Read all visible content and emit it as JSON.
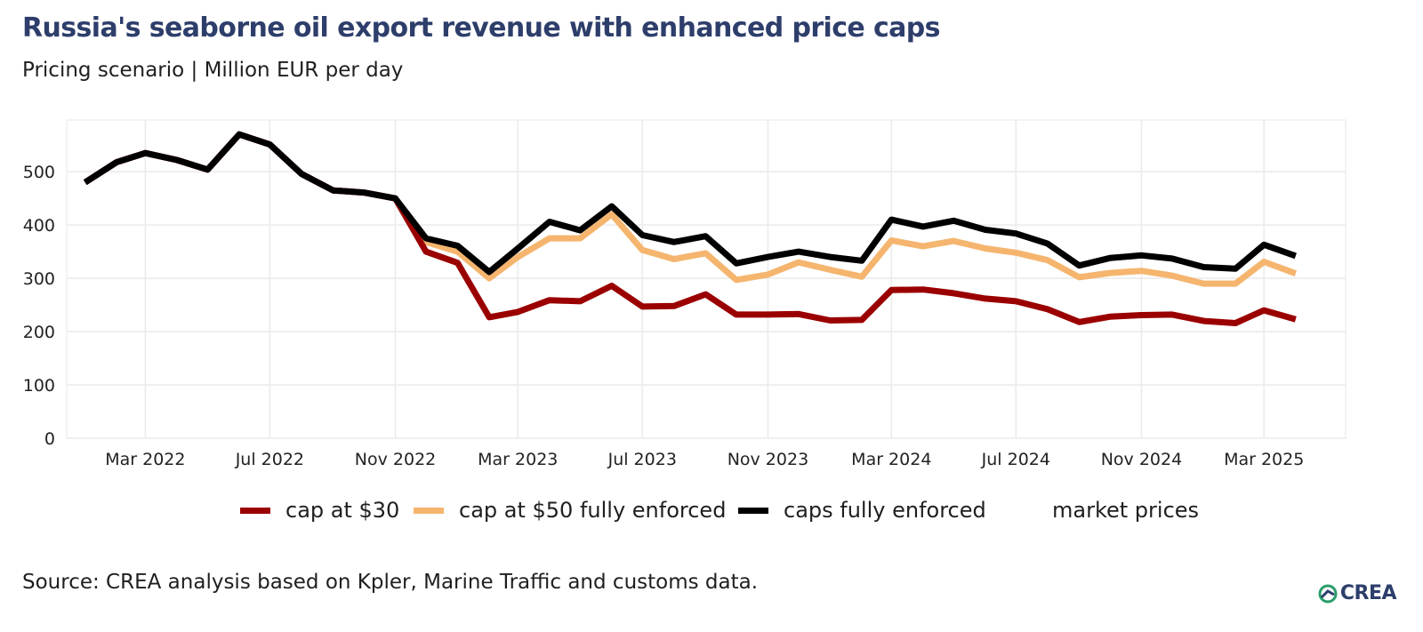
{
  "title": "Russia's seaborne oil export revenue with enhanced price caps",
  "subtitle": "Pricing scenario | Million EUR per day",
  "source": "Source: CREA analysis based on Kpler, Marine Traffic and customs data.",
  "logo_text": "CREA",
  "chart_data": {
    "type": "line",
    "title": "Russia's seaborne oil export revenue with enhanced price caps",
    "subtitle": "Pricing scenario | Million EUR per day",
    "x": [
      "2022-01",
      "2022-02",
      "2022-03",
      "2022-04",
      "2022-05",
      "2022-06",
      "2022-07",
      "2022-08",
      "2022-09",
      "2022-10",
      "2022-11",
      "2022-12",
      "2023-01",
      "2023-02",
      "2023-03",
      "2023-04",
      "2023-05",
      "2023-06",
      "2023-07",
      "2023-08",
      "2023-09",
      "2023-10",
      "2023-11",
      "2023-12",
      "2024-01",
      "2024-02",
      "2024-03",
      "2024-04",
      "2024-05",
      "2024-06",
      "2024-07",
      "2024-08",
      "2024-09",
      "2024-10",
      "2024-11",
      "2024-12",
      "2025-01",
      "2025-02",
      "2025-03",
      "2025-04"
    ],
    "x_ticks": [
      {
        "label": "Mar 2022",
        "x": "2022-03"
      },
      {
        "label": "Jul 2022",
        "x": "2022-07"
      },
      {
        "label": "Nov 2022",
        "x": "2022-11"
      },
      {
        "label": "Mar 2023",
        "x": "2023-03"
      },
      {
        "label": "Jul 2023",
        "x": "2023-07"
      },
      {
        "label": "Nov 2023",
        "x": "2023-11"
      },
      {
        "label": "Mar 2024",
        "x": "2024-03"
      },
      {
        "label": "Jul 2024",
        "x": "2024-07"
      },
      {
        "label": "Nov 2024",
        "x": "2024-11"
      },
      {
        "label": "Mar 2025",
        "x": "2025-03"
      }
    ],
    "y_ticks": [
      0,
      100,
      200,
      300,
      400,
      500
    ],
    "ylim": [
      0,
      597
    ],
    "xlim": [
      "2021-12-14",
      "2025-05-20"
    ],
    "grid": true,
    "legend_position": "bottom",
    "series": [
      {
        "name": "market prices",
        "color": "#000000",
        "show_swatch": false,
        "values": [
          480,
          518,
          535,
          522,
          504,
          570,
          551,
          496,
          465,
          461,
          450,
          375,
          361,
          312,
          356,
          406,
          390,
          435,
          381,
          368,
          379,
          328,
          340,
          350,
          340,
          333,
          410,
          397,
          408,
          391,
          384,
          365,
          324,
          338,
          343,
          337,
          321,
          318,
          363,
          342
        ]
      },
      {
        "name": "cap at $50 fully enforced",
        "color": "#f5b56e",
        "show_swatch": true,
        "values": [
          480,
          518,
          535,
          522,
          504,
          570,
          551,
          496,
          465,
          461,
          450,
          368,
          350,
          300,
          340,
          375,
          375,
          420,
          353,
          336,
          347,
          297,
          307,
          330,
          316,
          303,
          371,
          360,
          370,
          356,
          348,
          334,
          302,
          310,
          314,
          305,
          290,
          290,
          331,
          309
        ]
      },
      {
        "name": "cap at $30",
        "color": "#9b0000",
        "show_swatch": true,
        "values": [
          480,
          518,
          535,
          522,
          504,
          570,
          551,
          496,
          465,
          461,
          450,
          350,
          329,
          227,
          237,
          259,
          257,
          286,
          247,
          248,
          270,
          232,
          232,
          233,
          221,
          222,
          278,
          279,
          272,
          262,
          257,
          242,
          218,
          228,
          231,
          232,
          220,
          216,
          240,
          223
        ]
      },
      {
        "name": "caps fully enforced",
        "color": "#000000",
        "show_swatch": true,
        "values": [
          480,
          518,
          535,
          522,
          504,
          570,
          551,
          496,
          465,
          461,
          450,
          375,
          361,
          312,
          356,
          406,
          390,
          435,
          381,
          368,
          379,
          328,
          340,
          350,
          340,
          333,
          410,
          397,
          408,
          391,
          384,
          365,
          324,
          338,
          343,
          337,
          321,
          318,
          363,
          342
        ]
      }
    ],
    "legend_order": [
      "cap at $30",
      "cap at $50 fully enforced",
      "caps fully enforced",
      "market prices"
    ]
  }
}
